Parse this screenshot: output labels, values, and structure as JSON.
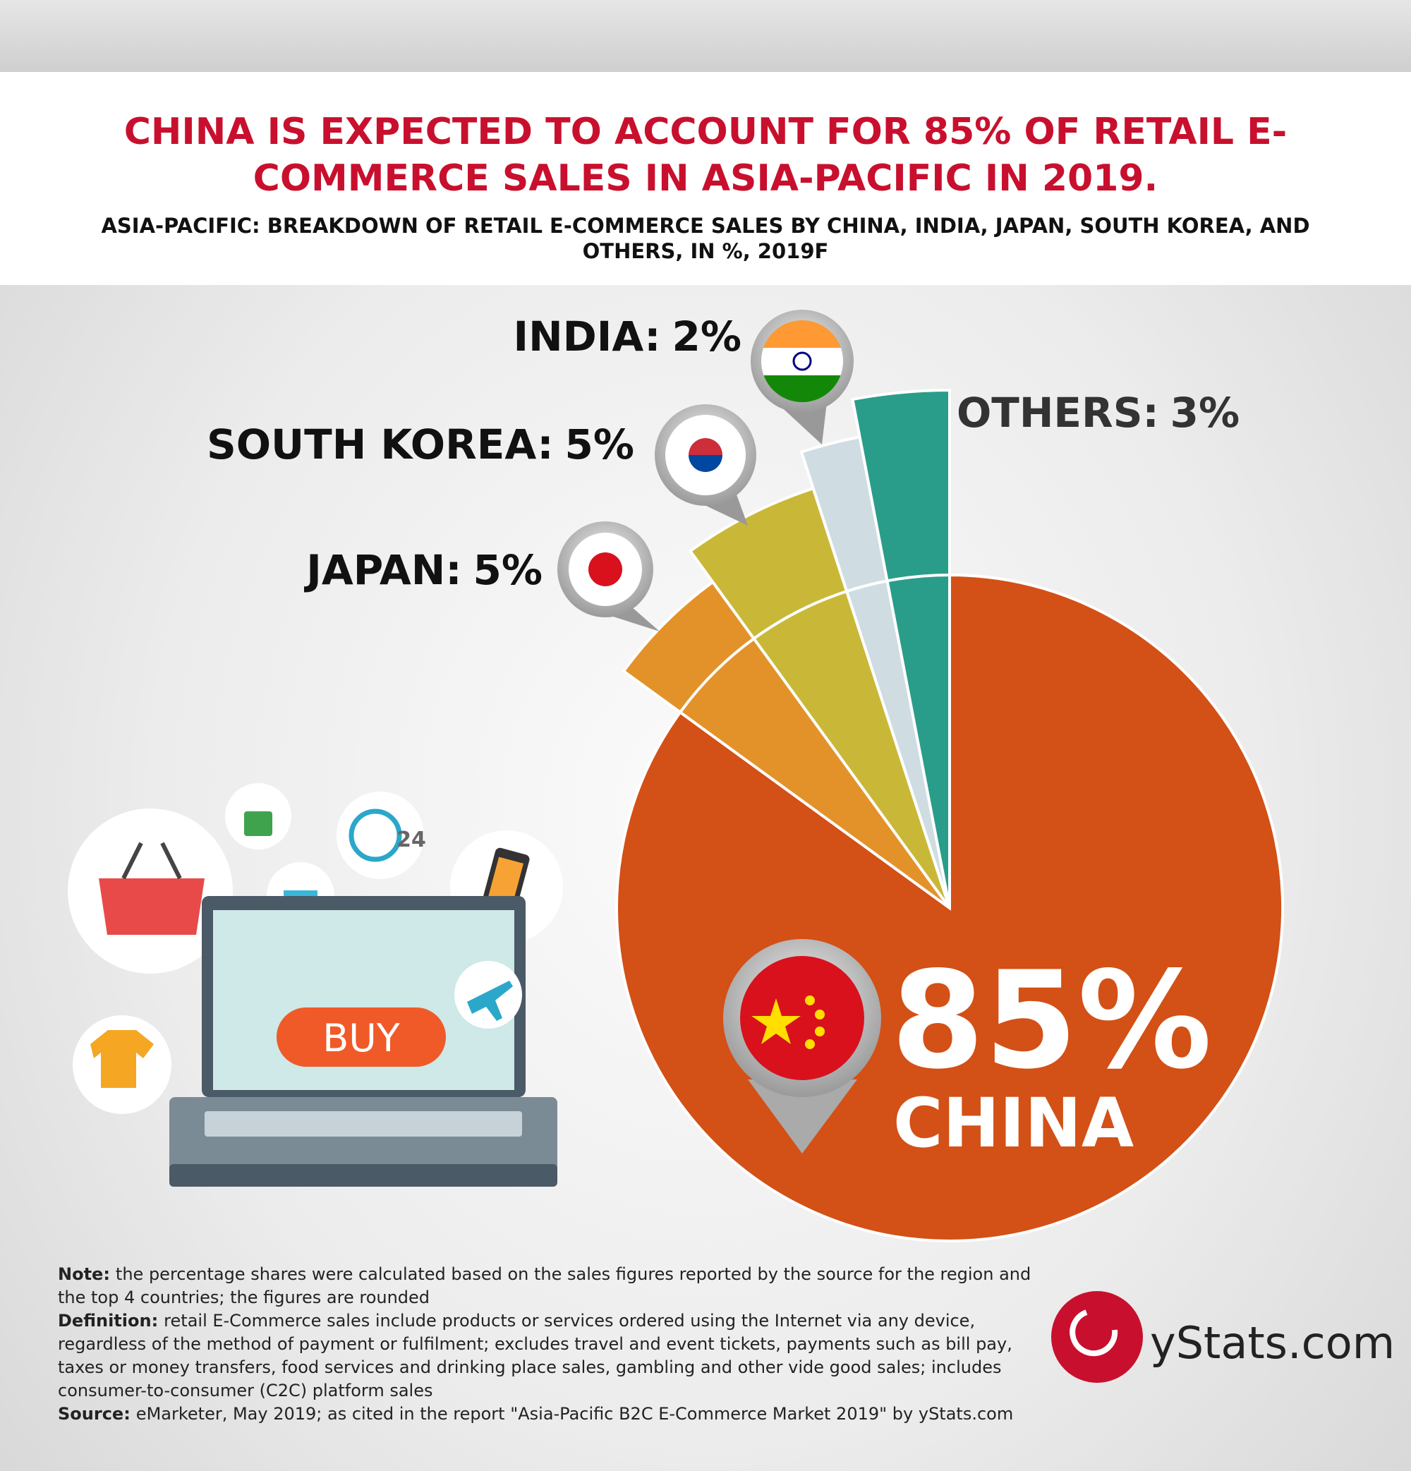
{
  "header": {
    "title": "CHINA IS EXPECTED TO ACCOUNT FOR 85% OF RETAIL E-COMMERCE SALES IN ASIA-PACIFIC IN 2019.",
    "subtitle": "ASIA-PACIFIC: BREAKDOWN OF RETAIL E-COMMERCE SALES BY CHINA, INDIA, JAPAN, SOUTH KOREA, AND OTHERS, IN %, 2019F"
  },
  "chart_data": {
    "type": "pie",
    "categories": [
      "CHINA",
      "JAPAN:",
      "SOUTH KOREA:",
      "INDIA:",
      "OTHERS:"
    ],
    "values": [
      85,
      5,
      5,
      2,
      3
    ],
    "value_labels": [
      "85%",
      "5%",
      "5%",
      "2%",
      "3%"
    ],
    "colors": [
      "#d35016",
      "#e3922a",
      "#c9b838",
      "#cfdde3",
      "#2a9d8a"
    ]
  },
  "illustration": {
    "button": "BUY",
    "clock": "24"
  },
  "notes": [
    {
      "label": "Note:",
      "text": "the percentage shares were calculated based on the sales figures reported by the source for the region and the top 4 countries; the figures are rounded"
    },
    {
      "label": "Definition:",
      "text": "retail E-Commerce sales include products or services ordered using the Internet via any device, regardless of the method of payment or fulfilment; excludes travel and event tickets, payments such as bill pay, taxes or money transfers, food services and drinking place sales, gambling and other vide good sales; includes consumer-to-consumer (C2C) platform sales"
    },
    {
      "label": "Source:",
      "text": "eMarketer, May 2019; as cited in the report \"Asia-Pacific B2C E-Commerce Market 2019\" by yStats.com"
    }
  ],
  "logo": "yStats.com"
}
